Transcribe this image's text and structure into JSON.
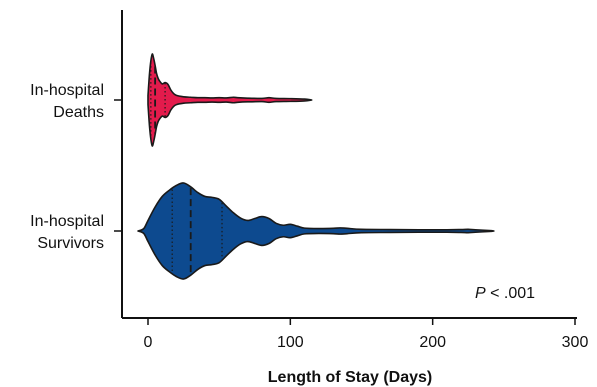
{
  "chart_data": {
    "type": "violin",
    "orientation": "horizontal",
    "xlabel": "Length of Stay (Days)",
    "ylabel": "",
    "xlim": [
      -20,
      300
    ],
    "xticks": [
      0,
      100,
      200,
      300
    ],
    "grid": false,
    "legend": "none",
    "annotation": {
      "italic": "P",
      "rest": " < .001"
    },
    "series": [
      {
        "name": "In-hospital Deaths",
        "label_lines": [
          "In-hospital",
          "Deaths"
        ],
        "color": "#e31b4c",
        "min": 0,
        "max": 115,
        "quartiles": [
          2,
          5,
          12
        ],
        "density": [
          [
            0,
            0.1
          ],
          [
            1,
            0.55
          ],
          [
            2,
            0.85
          ],
          [
            3,
            1.0
          ],
          [
            4,
            0.9
          ],
          [
            5,
            0.75
          ],
          [
            6,
            0.58
          ],
          [
            7,
            0.48
          ],
          [
            8,
            0.42
          ],
          [
            10,
            0.35
          ],
          [
            12,
            0.38
          ],
          [
            14,
            0.34
          ],
          [
            16,
            0.22
          ],
          [
            18,
            0.14
          ],
          [
            20,
            0.1
          ],
          [
            25,
            0.07
          ],
          [
            30,
            0.06
          ],
          [
            35,
            0.05
          ],
          [
            40,
            0.05
          ],
          [
            45,
            0.045
          ],
          [
            50,
            0.05
          ],
          [
            55,
            0.045
          ],
          [
            60,
            0.06
          ],
          [
            63,
            0.05
          ],
          [
            70,
            0.04
          ],
          [
            80,
            0.035
          ],
          [
            85,
            0.05
          ],
          [
            90,
            0.035
          ],
          [
            100,
            0.03
          ],
          [
            110,
            0.02
          ],
          [
            115,
            0.0
          ]
        ]
      },
      {
        "name": "In-hospital Survivors",
        "label_lines": [
          "In-hospital",
          "Survivors"
        ],
        "color": "#0d4a8f",
        "min": -7,
        "max": 243,
        "quartiles": [
          17,
          30,
          52
        ],
        "density": [
          [
            -7,
            0.0
          ],
          [
            -3,
            0.05
          ],
          [
            0,
            0.22
          ],
          [
            5,
            0.5
          ],
          [
            10,
            0.72
          ],
          [
            15,
            0.85
          ],
          [
            20,
            0.95
          ],
          [
            25,
            1.0
          ],
          [
            30,
            0.92
          ],
          [
            35,
            0.8
          ],
          [
            40,
            0.72
          ],
          [
            45,
            0.7
          ],
          [
            50,
            0.66
          ],
          [
            55,
            0.52
          ],
          [
            60,
            0.38
          ],
          [
            65,
            0.27
          ],
          [
            70,
            0.22
          ],
          [
            75,
            0.26
          ],
          [
            80,
            0.3
          ],
          [
            85,
            0.26
          ],
          [
            90,
            0.16
          ],
          [
            95,
            0.12
          ],
          [
            100,
            0.14
          ],
          [
            105,
            0.1
          ],
          [
            110,
            0.06
          ],
          [
            120,
            0.05
          ],
          [
            130,
            0.055
          ],
          [
            135,
            0.065
          ],
          [
            140,
            0.055
          ],
          [
            150,
            0.035
          ],
          [
            170,
            0.03
          ],
          [
            190,
            0.025
          ],
          [
            210,
            0.025
          ],
          [
            220,
            0.03
          ],
          [
            225,
            0.035
          ],
          [
            230,
            0.025
          ],
          [
            240,
            0.01
          ],
          [
            243,
            0.0
          ]
        ]
      }
    ]
  }
}
